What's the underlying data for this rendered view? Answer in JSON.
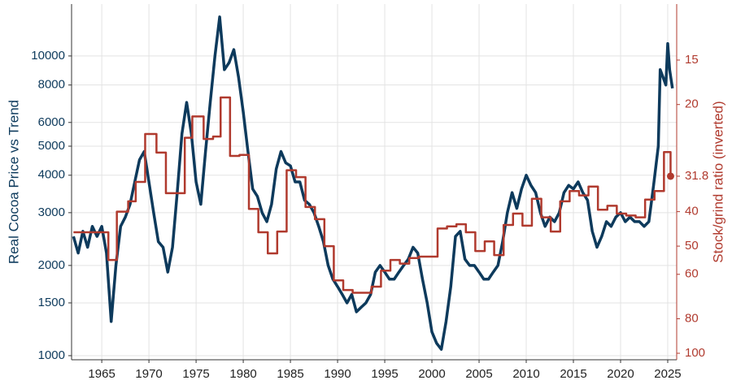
{
  "chart_data": {
    "type": "line",
    "y_label": "Real Cocoa Price vs Trend",
    "y2_label": "Stock/grind ratio (inverted)",
    "xlim": [
      1961.8,
      2025.95
    ],
    "xticks": [
      1965,
      1970,
      1975,
      1980,
      1985,
      1990,
      1995,
      2000,
      2005,
      2010,
      2015,
      2020,
      2025
    ],
    "ylim": [
      969,
      14900
    ],
    "yticks": [
      1000,
      1500,
      2000,
      3000,
      4000,
      5000,
      6000,
      8000,
      10000
    ],
    "y_log": true,
    "y2lim": [
      10.44,
      104.3
    ],
    "y2ticks": [
      15,
      20,
      31.8,
      40,
      50,
      60,
      80,
      100
    ],
    "y2_log": true,
    "y2_inverted": true,
    "grid": true,
    "series": [
      {
        "name": "Real Cocoa Price",
        "color": "#0d3a5c",
        "x": [
          1962,
          1962.5,
          1963,
          1963.5,
          1964,
          1964.5,
          1965,
          1965.5,
          1966,
          1966.5,
          1967,
          1967.5,
          1968,
          1968.5,
          1969,
          1969.5,
          1970,
          1970.5,
          1971,
          1971.5,
          1972,
          1972.5,
          1973,
          1973.5,
          1974,
          1974.5,
          1975,
          1975.5,
          1976,
          1976.5,
          1977,
          1977.5,
          1978,
          1978.5,
          1979,
          1979.5,
          1980,
          1980.5,
          1981,
          1981.5,
          1982,
          1982.5,
          1983,
          1983.5,
          1984,
          1984.5,
          1985,
          1985.5,
          1986,
          1986.5,
          1987,
          1987.5,
          1988,
          1988.5,
          1989,
          1989.5,
          1990,
          1990.5,
          1991,
          1991.5,
          1992,
          1992.5,
          1993,
          1993.5,
          1994,
          1994.5,
          1995,
          1995.5,
          1996,
          1996.5,
          1997,
          1997.5,
          1998,
          1998.5,
          1999,
          1999.5,
          2000,
          2000.5,
          2001,
          2001.5,
          2002,
          2002.5,
          2003,
          2003.5,
          2004,
          2004.5,
          2005,
          2005.5,
          2006,
          2006.5,
          2007,
          2007.5,
          2008,
          2008.5,
          2009,
          2009.5,
          2010,
          2010.5,
          2011,
          2011.5,
          2012,
          2012.5,
          2013,
          2013.5,
          2014,
          2014.5,
          2015,
          2015.5,
          2016,
          2016.5,
          2017,
          2017.5,
          2018,
          2018.5,
          2019,
          2019.5,
          2020,
          2020.5,
          2021,
          2021.5,
          2022,
          2022.5,
          2023,
          2023.5,
          2024,
          2024.2,
          2024.5,
          2024.8,
          2025,
          2025.2,
          2025.5
        ],
        "values": [
          2500,
          2200,
          2600,
          2300,
          2700,
          2500,
          2700,
          2200,
          1300,
          2000,
          2700,
          2900,
          3200,
          3800,
          4500,
          4800,
          3800,
          3000,
          2400,
          2300,
          1900,
          2300,
          3500,
          5500,
          7000,
          5500,
          3800,
          3200,
          4800,
          7000,
          10000,
          13500,
          9000,
          9500,
          10500,
          8500,
          6500,
          4800,
          3600,
          3400,
          3000,
          2800,
          3200,
          4200,
          4800,
          4400,
          4300,
          3800,
          3800,
          3300,
          3200,
          3000,
          2700,
          2400,
          2000,
          1800,
          1700,
          1600,
          1500,
          1600,
          1400,
          1450,
          1500,
          1600,
          1900,
          2000,
          1900,
          1800,
          1800,
          1900,
          2000,
          2100,
          2300,
          2200,
          1800,
          1500,
          1200,
          1100,
          1050,
          1300,
          1700,
          2500,
          2600,
          2100,
          2000,
          2000,
          1900,
          1800,
          1800,
          1900,
          2000,
          2400,
          3000,
          3500,
          3100,
          3600,
          4000,
          3700,
          3500,
          3000,
          2700,
          2900,
          2800,
          3000,
          3500,
          3700,
          3600,
          3800,
          3500,
          3300,
          2600,
          2300,
          2500,
          2800,
          2700,
          2900,
          3000,
          2800,
          2900,
          2800,
          2800,
          2700,
          2800,
          3700,
          5000,
          9000,
          8500,
          8000,
          11000,
          9000,
          7800
        ]
      },
      {
        "name": "Stock/grind ratio",
        "color": "#b03a2e",
        "axis": "y2",
        "step": "post",
        "last_marker": true,
        "x": [
          1962,
          1965.7,
          1966.6,
          1967.8,
          1968.6,
          1969.6,
          1970.8,
          1971.8,
          1973.8,
          1974.6,
          1975.8,
          1976.8,
          1977.6,
          1978.6,
          1979.6,
          1980.6,
          1981.6,
          1982.6,
          1983.6,
          1984.6,
          1985.6,
          1986.6,
          1987.6,
          1988.6,
          1989.6,
          1990.6,
          1991.6,
          1993.6,
          1994.6,
          1995.6,
          1996.6,
          1997.6,
          1998.6,
          2000.6,
          2001.6,
          2002.6,
          2003.6,
          2004.6,
          2005.6,
          2006.6,
          2007.6,
          2008.6,
          2009.6,
          2010.6,
          2011.6,
          2012.6,
          2013.6,
          2014.6,
          2015.6,
          2016.6,
          2017.6,
          2018.6,
          2019.6,
          2020.6,
          2021.6,
          2022.6,
          2023.6,
          2024.6,
          2025.3
        ],
        "values": [
          45.7,
          54.7,
          40,
          37.4,
          33,
          24.2,
          27.3,
          35.5,
          24.8,
          21.6,
          25,
          24.6,
          19.1,
          27.9,
          27.7,
          39.3,
          45.7,
          52.4,
          45.5,
          30.6,
          32,
          38.8,
          42,
          50,
          62.4,
          66.4,
          67.6,
          65,
          58.6,
          54.7,
          56,
          54,
          53.5,
          44.6,
          44,
          43.4,
          45.7,
          51.6,
          48.5,
          53,
          43.6,
          40.5,
          43.8,
          36.8,
          41.5,
          45.5,
          37.4,
          35,
          36,
          34,
          39.5,
          38.5,
          40.5,
          41,
          41.5,
          37,
          35,
          27.2,
          31.8
        ]
      }
    ]
  }
}
